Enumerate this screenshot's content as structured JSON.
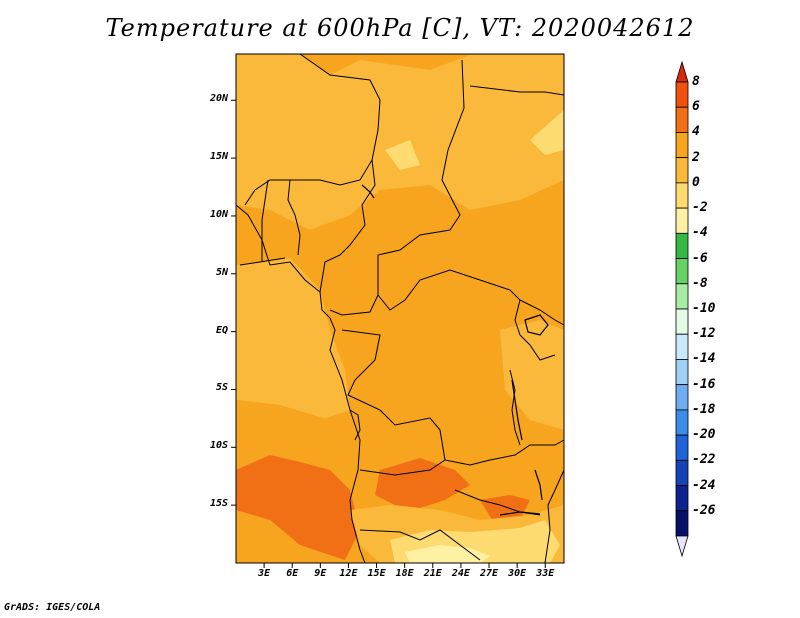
{
  "title": "Temperature at 600hPa [C], VT: 2020042612",
  "footer": "GrADS: IGES/COLA",
  "map": {
    "lon_range": [
      0,
      35
    ],
    "lat_range": [
      -20,
      24
    ],
    "lat_ticks": [
      {
        "value": 20,
        "label": "20N"
      },
      {
        "value": 15,
        "label": "15N"
      },
      {
        "value": 10,
        "label": "10N"
      },
      {
        "value": 5,
        "label": "5N"
      },
      {
        "value": 0,
        "label": "EQ"
      },
      {
        "value": -5,
        "label": "5S"
      },
      {
        "value": -10,
        "label": "10S"
      },
      {
        "value": -15,
        "label": "15S"
      }
    ],
    "lon_ticks": [
      {
        "value": 3,
        "label": "3E"
      },
      {
        "value": 6,
        "label": "6E"
      },
      {
        "value": 9,
        "label": "9E"
      },
      {
        "value": 12,
        "label": "12E"
      },
      {
        "value": 15,
        "label": "15E"
      },
      {
        "value": 18,
        "label": "18E"
      },
      {
        "value": 21,
        "label": "21E"
      },
      {
        "value": 24,
        "label": "24E"
      },
      {
        "value": 27,
        "label": "27E"
      },
      {
        "value": 30,
        "label": "30E"
      },
      {
        "value": 33,
        "label": "33E"
      }
    ],
    "field_colors": {
      "c0_2": "#fbb93c",
      "c2_4": "#f7a41f",
      "c4_6": "#f17015",
      "cm2_0": "#fddb71",
      "cm4_m2": "#fef1a3"
    }
  },
  "colorbar": {
    "labels": [
      "8",
      "6",
      "4",
      "2",
      "0",
      "-2",
      "-4",
      "-6",
      "-8",
      "-10",
      "-12",
      "-14",
      "-16",
      "-18",
      "-20",
      "-22",
      "-24",
      "-26"
    ],
    "colors": [
      "#d42a10",
      "#f1500f",
      "#f17015",
      "#f7a41f",
      "#fbb93c",
      "#fddb71",
      "#fef1a3",
      "#34b944",
      "#66d266",
      "#a6eba6",
      "#e6fbe6",
      "#c8e9fb",
      "#9fd1f6",
      "#6eaef0",
      "#3b8be8",
      "#1e63d8",
      "#1443b8",
      "#0c228c",
      "#06116a",
      "#e6e6fa"
    ]
  }
}
